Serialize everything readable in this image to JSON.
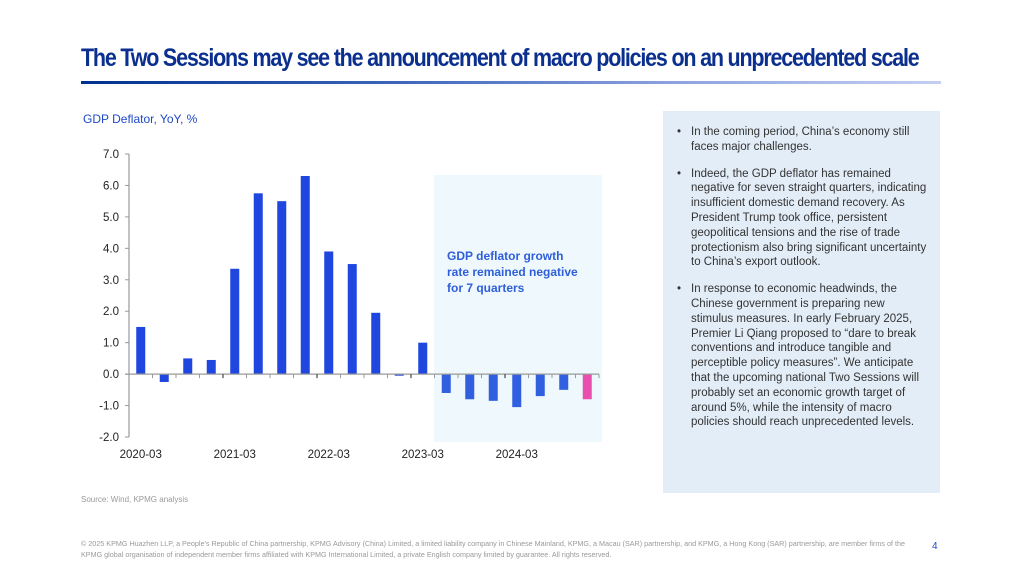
{
  "header": {
    "title": "The Two Sessions may see the announcement of macro policies on an unprecedented scale"
  },
  "colors": {
    "title": "#0b2f8e",
    "bar": "#1f47e0",
    "bar_negative_period": "#3060e0",
    "bar_latest": "#e94fae",
    "highlight_bg": "#eef8fd",
    "panel_bg": "#e3edf7",
    "annotation": "#2f5fd8"
  },
  "chart_data": {
    "type": "bar",
    "title": "GDP Deflator, YoY, %",
    "xlabel": "",
    "ylabel": "",
    "ylim": [
      -2.0,
      7.0
    ],
    "yticks": [
      "7.0",
      "6.0",
      "5.0",
      "4.0",
      "3.0",
      "2.0",
      "1.0",
      "0.0",
      "-1.0",
      "-2.0"
    ],
    "ytick_values": [
      7,
      6,
      5,
      4,
      3,
      2,
      1,
      0,
      -1,
      -2
    ],
    "categories": [
      "2020-03",
      "2020-06",
      "2020-09",
      "2020-12",
      "2021-03",
      "2021-06",
      "2021-09",
      "2021-12",
      "2022-03",
      "2022-06",
      "2022-09",
      "2022-12",
      "2023-03",
      "2023-06",
      "2023-09",
      "2023-12",
      "2024-03",
      "2024-06",
      "2024-09",
      "2024-12"
    ],
    "xtick_labels": [
      {
        "index": 0,
        "label": "2020-03"
      },
      {
        "index": 4,
        "label": "2021-03"
      },
      {
        "index": 8,
        "label": "2022-03"
      },
      {
        "index": 12,
        "label": "2023-03"
      },
      {
        "index": 16,
        "label": "2024-03"
      }
    ],
    "values": [
      1.5,
      -0.25,
      0.5,
      0.45,
      3.35,
      5.75,
      5.5,
      6.3,
      3.9,
      3.5,
      1.95,
      -0.05,
      1.0,
      -0.6,
      -0.8,
      -0.85,
      -1.05,
      -0.7,
      -0.5,
      -0.8
    ],
    "highlight_range": {
      "start_index": 13,
      "end_index": 19
    },
    "highlight_last_index": 19,
    "annotation": "GDP deflator growth rate remained negative for 7 quarters",
    "grid": false,
    "legend": "none"
  },
  "source": "Source: Wind, KPMG analysis",
  "panel": {
    "bullets": [
      "In the coming period, China’s economy still faces major challenges.",
      "Indeed, the GDP deflator has remained negative for seven straight quarters, indicating insufficient domestic demand recovery. As President Trump took office, persistent geopolitical tensions and the rise of trade protectionism also bring significant uncertainty to China’s export outlook.",
      "In response to economic headwinds, the Chinese government is preparing new stimulus measures. In early February 2025, Premier Li Qiang proposed to “dare to break conventions and introduce tangible and perceptible policy measures”. We anticipate that the upcoming national Two Sessions will probably set an economic growth target of around 5%, while the intensity of macro policies should reach unprecedented levels."
    ]
  },
  "footer": {
    "copyright": "© 2025 KPMG Huazhen LLP, a People’s Republic of China partnership, KPMG Advisory (China) Limited, a limited liability company in Chinese Mainland, KPMG, a Macau (SAR) partnership, and KPMG, a Hong Kong (SAR) partnership, are member firms of the KPMG global organisation of independent member firms affiliated with KPMG International Limited, a private English company limited by guarantee. All rights reserved.",
    "page_number": "4"
  }
}
